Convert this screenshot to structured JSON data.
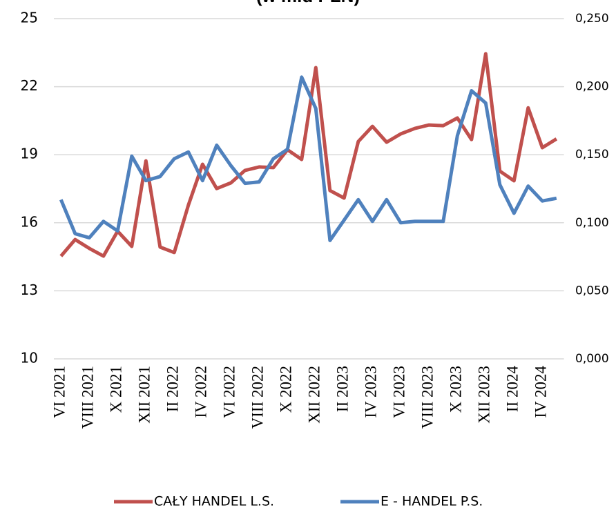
{
  "chart_data": {
    "type": "line",
    "title": "(w mld PLN)",
    "categories": [
      "VI 2021",
      null,
      "VIII 2021",
      null,
      "X 2021",
      null,
      "XII 2021",
      null,
      "II 2022",
      null,
      "IV 2022",
      null,
      "VI 2022",
      null,
      "VIII 2022",
      null,
      "X 2022",
      null,
      "XII 2022",
      null,
      "II 2023",
      null,
      "IV 2023",
      null,
      "VI 2023",
      null,
      "VIII 2023",
      null,
      "X 2023",
      null,
      "XII 2023",
      null,
      "II 2024",
      null,
      "IV 2024",
      null
    ],
    "series": [
      {
        "name": "CAŁY HANDEL L.S.",
        "color": "#c0504d",
        "values": [
          14.53,
          15.26,
          14.87,
          14.53,
          15.63,
          14.96,
          18.73,
          14.93,
          14.69,
          16.78,
          18.58,
          17.51,
          17.76,
          18.31,
          18.46,
          18.43,
          19.22,
          18.79,
          22.84,
          17.42,
          17.09,
          19.58,
          20.25,
          19.55,
          19.92,
          20.16,
          20.31,
          20.28,
          20.62,
          19.67,
          23.45,
          18.28,
          17.85,
          21.07,
          19.31,
          19.7
        ]
      },
      {
        "name": "E - HANDEL P.S.",
        "color": "#4f81bd",
        "axis": "y2",
        "values": [
          0.117,
          0.092,
          0.089,
          0.101,
          0.094,
          0.149,
          0.131,
          0.134,
          0.147,
          0.152,
          0.131,
          0.157,
          0.142,
          0.129,
          0.13,
          0.147,
          0.154,
          0.207,
          0.184,
          0.087,
          0.102,
          0.117,
          0.101,
          0.117,
          0.1,
          0.101,
          0.101,
          0.101,
          0.164,
          0.197,
          0.188,
          0.128,
          0.107,
          0.127,
          0.116,
          0.118
        ]
      }
    ],
    "ylim": [
      10,
      25
    ],
    "yticks": [
      10,
      13,
      16,
      19,
      22,
      25
    ],
    "y2lim": [
      0,
      0.25
    ],
    "y2ticks": [
      {
        "value": 0,
        "label": "0,000"
      },
      {
        "value": 0.05,
        "label": "0,050"
      },
      {
        "value": 0.1,
        "label": "0,100"
      },
      {
        "value": 0.15,
        "label": "0,150"
      },
      {
        "value": 0.2,
        "label": "0,200"
      },
      {
        "value": 0.25,
        "label": "0,250"
      }
    ],
    "grid": true,
    "legend": "bottom"
  }
}
